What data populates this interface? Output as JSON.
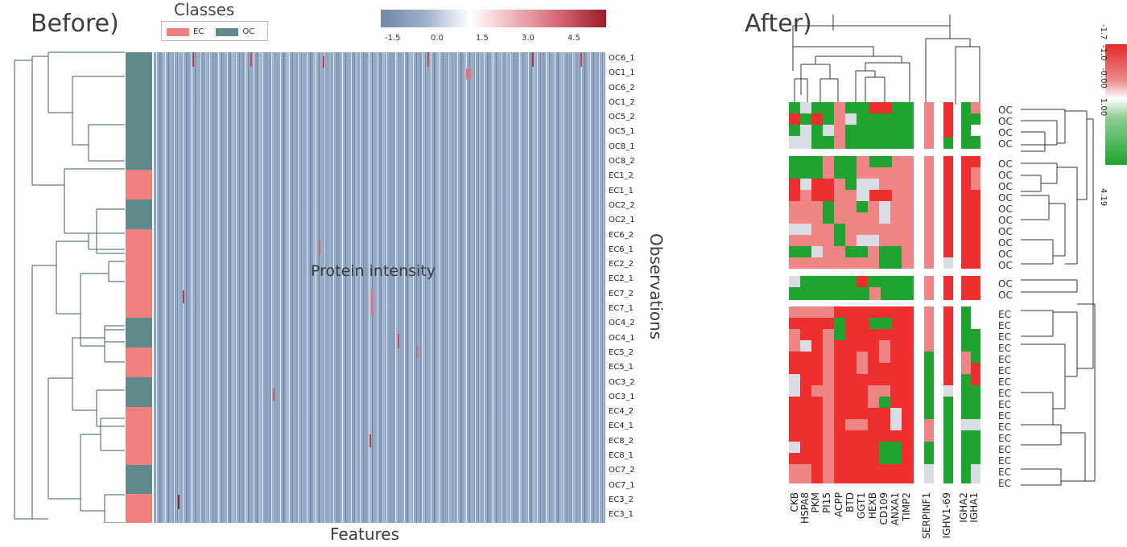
{
  "before": {
    "panel_title": "Before)",
    "classes_title": "Classes",
    "legend": [
      {
        "label": "EC",
        "color": "#f28080"
      },
      {
        "label": "OC",
        "color": "#5f8a8b"
      }
    ],
    "colorbar_ticks": [
      "-1.5",
      "0.0",
      "1.5",
      "3.0",
      "4.5"
    ],
    "heatmap_label": "Protein intensity",
    "x_axis_label": "Features",
    "y_axis_label": "Observations",
    "rows": [
      "OC6_1",
      "OC1_1",
      "OC6_2",
      "OC1_2",
      "OC5_2",
      "OC5_1",
      "OC8_1",
      "OC8_2",
      "EC1_2",
      "EC1_1",
      "OC2_2",
      "OC2_1",
      "EC6_2",
      "EC6_1",
      "EC2_2",
      "EC2_1",
      "EC7_2",
      "EC7_1",
      "OC4_2",
      "OC4_1",
      "EC5_2",
      "EC5_1",
      "OC3_2",
      "OC3_1",
      "EC4_2",
      "EC4_1",
      "EC8_2",
      "EC8_1",
      "OC7_2",
      "OC7_1",
      "EC3_2",
      "EC3_1"
    ]
  },
  "after": {
    "panel_title": "After)",
    "colorbar_ticks": [
      "-1.7",
      "-1.0",
      "-0.00",
      "1.00",
      "4.19"
    ],
    "genes": [
      "CKB",
      "HSPA8",
      "PKM",
      "PI15",
      "ACPP",
      "BTD",
      "GGT1",
      "HEXB",
      "CD109",
      "ANXA1",
      "TIMP2",
      "SERPINF1",
      "IGHV1-69",
      "IGHA2",
      "IGHA1"
    ],
    "row_labels": [
      "OC",
      "OC",
      "OC",
      "OC",
      "OC",
      "OC",
      "OC",
      "OC",
      "OC",
      "OC",
      "OC",
      "OC",
      "OC",
      "OC",
      "OC",
      "EC",
      "EC",
      "EC",
      "EC",
      "EC",
      "EC",
      "EC",
      "EC",
      "EC",
      "EC",
      "EC",
      "EC",
      "EC",
      "EC",
      "EC",
      "EC"
    ]
  },
  "colors": {
    "before_bg": "#8ea5c2",
    "red": "#ee2f2f",
    "green": "#1fa52f",
    "pink": "#f08585",
    "grey": "#d9dde3"
  }
}
